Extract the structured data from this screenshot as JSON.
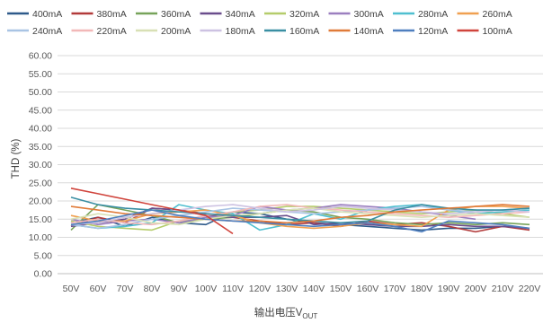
{
  "chart_data": {
    "type": "line",
    "title": "",
    "xlabel": "输出电压V",
    "xlabel_sub": "OUT",
    "ylabel": "THD (%)",
    "ylim": [
      0,
      60
    ],
    "ytick_step": 5,
    "grid": true,
    "legend_position": "top",
    "categories": [
      "50V",
      "60V",
      "70V",
      "80V",
      "90V",
      "100V",
      "110V",
      "120V",
      "130V",
      "140V",
      "150V",
      "160V",
      "170V",
      "180V",
      "190V",
      "200V",
      "210V",
      "220V"
    ],
    "series": [
      {
        "name": "400mA",
        "color": "#2e5a8a",
        "values": [
          14.0,
          15.5,
          13.0,
          15.5,
          14.0,
          13.5,
          17.0,
          16.5,
          15.0,
          14.0,
          13.5,
          13.0,
          12.5,
          12.0,
          12.5,
          12.5,
          13.0,
          12.5
        ]
      },
      {
        "name": "380mA",
        "color": "#b23a3a",
        "values": [
          13.0,
          15.5,
          14.0,
          18.0,
          17.5,
          16.5,
          15.5,
          14.5,
          13.5,
          14.0,
          13.0,
          14.5,
          13.5,
          14.0,
          13.0,
          11.5,
          13.0,
          12.0
        ]
      },
      {
        "name": "360mA",
        "color": "#77a35a",
        "values": [
          12.0,
          19.0,
          17.5,
          16.0,
          14.0,
          15.0,
          15.5,
          16.5,
          17.5,
          17.0,
          15.5,
          15.0,
          14.0,
          13.5,
          14.0,
          13.5,
          14.0,
          13.5
        ]
      },
      {
        "name": "340mA",
        "color": "#6a4d8c",
        "values": [
          13.0,
          14.0,
          15.0,
          18.0,
          17.5,
          16.0,
          15.5,
          15.5,
          16.0,
          13.5,
          14.0,
          13.5,
          13.0,
          13.0,
          13.5,
          13.0,
          13.0,
          12.5
        ]
      },
      {
        "name": "320mA",
        "color": "#b5cc6b",
        "values": [
          14.5,
          13.0,
          12.5,
          12.0,
          14.5,
          15.0,
          17.0,
          17.5,
          18.5,
          18.5,
          18.0,
          17.5,
          17.0,
          16.5,
          17.0,
          17.5,
          16.5,
          15.5
        ]
      },
      {
        "name": "300mA",
        "color": "#9b7fbf",
        "values": [
          15.0,
          13.5,
          14.5,
          15.0,
          14.0,
          15.5,
          16.0,
          18.5,
          17.5,
          18.0,
          19.0,
          18.5,
          18.0,
          17.0,
          16.0,
          15.0,
          null,
          null
        ]
      },
      {
        "name": "280mA",
        "color": "#4fbfd0",
        "values": [
          13.5,
          12.5,
          13.0,
          14.0,
          19.0,
          17.5,
          16.5,
          12.0,
          13.5,
          16.5,
          15.0,
          17.5,
          18.5,
          19.0,
          17.5,
          16.5,
          17.0,
          17.5
        ]
      },
      {
        "name": "260mA",
        "color": "#f0a050",
        "values": [
          16.0,
          14.5,
          14.5,
          16.5,
          17.0,
          17.5,
          16.0,
          14.0,
          13.0,
          12.5,
          13.0,
          14.0,
          13.5,
          13.0,
          17.5,
          18.5,
          18.5,
          18.0
        ]
      },
      {
        "name": "240mA",
        "color": "#a9c4e4",
        "values": [
          13.5,
          12.5,
          13.5,
          15.0,
          16.0,
          17.0,
          18.0,
          17.5,
          17.0,
          16.5,
          17.0,
          17.5,
          18.0,
          18.5,
          17.5,
          17.0,
          17.5,
          18.0
        ]
      },
      {
        "name": "220mA",
        "color": "#f2b8b8",
        "values": [
          14.0,
          15.0,
          14.0,
          13.5,
          14.5,
          16.0,
          17.0,
          18.5,
          19.0,
          18.0,
          17.5,
          17.0,
          16.5,
          16.0,
          15.5,
          16.0,
          16.5,
          17.0
        ]
      },
      {
        "name": "200mA",
        "color": "#d8e0b5",
        "values": [
          15.0,
          16.5,
          15.5,
          14.0,
          13.5,
          15.0,
          16.0,
          16.5,
          17.5,
          18.0,
          17.0,
          16.5,
          16.0,
          15.5,
          16.0,
          16.5,
          16.0,
          15.5
        ]
      },
      {
        "name": "180mA",
        "color": "#cdc2e2",
        "values": [
          13.5,
          14.0,
          15.5,
          16.5,
          17.5,
          18.5,
          19.0,
          18.0,
          17.0,
          17.5,
          18.5,
          18.0,
          17.5,
          17.0,
          16.5,
          17.0,
          17.5,
          17.0
        ]
      },
      {
        "name": "160mA",
        "color": "#3a8fa3",
        "values": [
          21.0,
          19.0,
          18.0,
          17.5,
          17.0,
          16.5,
          16.0,
          15.5,
          15.0,
          14.5,
          14.0,
          14.5,
          17.5,
          19.0,
          18.0,
          17.5,
          17.5,
          18.0
        ]
      },
      {
        "name": "140mA",
        "color": "#e07b39",
        "values": [
          18.5,
          17.5,
          16.5,
          16.0,
          15.5,
          15.0,
          14.5,
          14.5,
          14.0,
          14.5,
          15.5,
          16.0,
          17.0,
          17.5,
          18.0,
          18.5,
          19.0,
          18.5
        ]
      },
      {
        "name": "120mA",
        "color": "#4f7fbf",
        "values": [
          13.5,
          14.5,
          16.0,
          17.5,
          16.0,
          15.0,
          14.5,
          14.0,
          13.5,
          13.0,
          13.5,
          14.0,
          13.0,
          11.5,
          14.5,
          14.0,
          13.5,
          12.5
        ]
      },
      {
        "name": "100mA",
        "color": "#d0443c",
        "values": [
          23.5,
          22.0,
          20.5,
          19.0,
          17.5,
          16.0,
          11.0,
          null,
          null,
          null,
          null,
          null,
          null,
          null,
          null,
          null,
          null,
          null
        ]
      }
    ]
  }
}
